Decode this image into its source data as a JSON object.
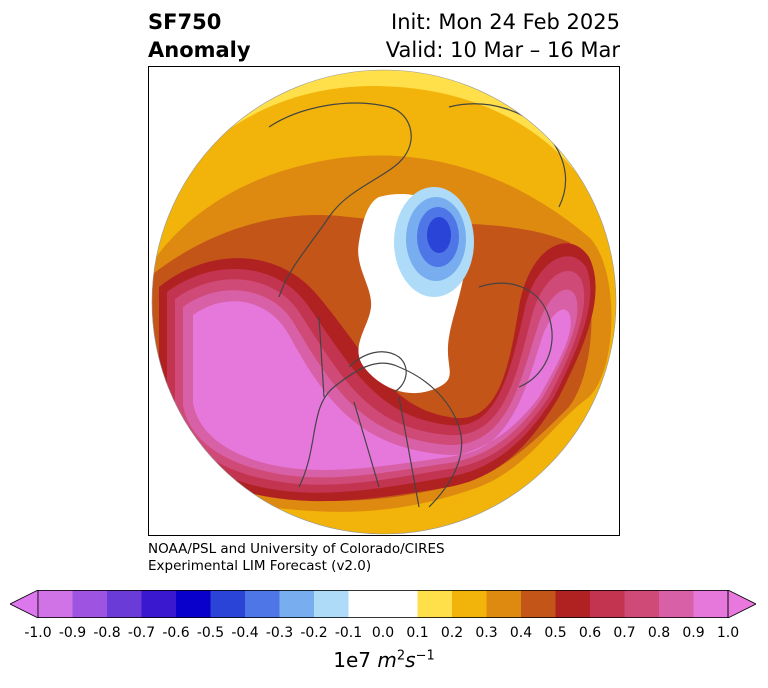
{
  "title": {
    "variable": "SF750",
    "subtitle": "Anomaly",
    "init": "Init: Mon 24 Feb 2025",
    "valid": "Valid: 10 Mar – 16 Mar"
  },
  "credit": {
    "line1": "NOAA/PSL and University of Colorado/CIRES",
    "line2": "Experimental LIM Forecast (v2.0)"
  },
  "colorbar": {
    "ticks": [
      "-1.0",
      "-0.9",
      "-0.8",
      "-0.7",
      "-0.6",
      "-0.5",
      "-0.4",
      "-0.3",
      "-0.2",
      "-0.1",
      "0.0",
      "0.1",
      "0.2",
      "0.3",
      "0.4",
      "0.5",
      "0.6",
      "0.7",
      "0.8",
      "0.9",
      "1.0"
    ],
    "colors": [
      "#cf73e6",
      "#9e54e0",
      "#6b3bd8",
      "#3a18d0",
      "#0a00cc",
      "#2a44d8",
      "#4e76e6",
      "#78aef0",
      "#aedcf8",
      "#ffffff",
      "#ffffff",
      "#ffe04a",
      "#f2b40a",
      "#de8a10",
      "#c45518",
      "#b02222",
      "#c23450",
      "#cf4a76",
      "#d860a6",
      "#e678dc"
    ],
    "under_color": "#dd77ee",
    "over_color": "#e878de",
    "units_prefix": "1e7 ",
    "units_m": "m",
    "units_m_exp": "2",
    "units_s": "s",
    "units_s_exp": "−1"
  },
  "map_colors": {
    "ocean_fill": "#ffffff",
    "coastline": "#444444",
    "pos_1": "#ffe04a",
    "pos_2": "#f2b40a",
    "pos_3": "#de8a10",
    "pos_4": "#c45518",
    "pos_5": "#b02222",
    "pos_6": "#c23450",
    "pos_7": "#cf4a76",
    "pos_8": "#d860a6",
    "pos_9": "#e678dc",
    "neg_1": "#aedcf8",
    "neg_2": "#78aef0",
    "neg_3": "#4e76e6",
    "neg_4": "#2a44d8"
  }
}
